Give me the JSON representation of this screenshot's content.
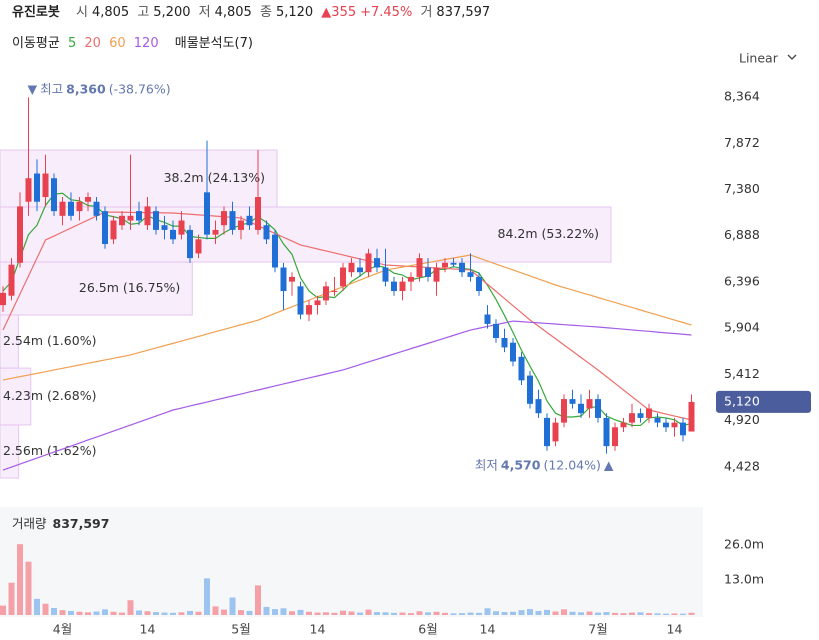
{
  "header": {
    "name": "유진로봇",
    "fields": [
      {
        "label": "시",
        "value": "4,805"
      },
      {
        "label": "고",
        "value": "5,200"
      },
      {
        "label": "저",
        "value": "4,805"
      },
      {
        "label": "종",
        "value": "5,120"
      }
    ],
    "change": "▲355",
    "change_pct": "+7.45%",
    "volume_label": "거",
    "volume_value": "837,597"
  },
  "indicators": {
    "ma_title": "이동평균",
    "profile_title": "매물분석도(7)",
    "scale": "Linear"
  },
  "chart_data": [
    {
      "type": "candlestick",
      "categories": [
        null,
        null,
        null,
        null,
        null,
        null,
        null,
        "4월",
        null,
        null,
        null,
        null,
        null,
        null,
        null,
        null,
        null,
        "14",
        null,
        null,
        null,
        null,
        null,
        null,
        null,
        null,
        null,
        null,
        "5월",
        null,
        null,
        null,
        null,
        null,
        null,
        null,
        null,
        "14",
        null,
        null,
        null,
        null,
        null,
        null,
        null,
        null,
        null,
        null,
        null,
        null,
        "6월",
        null,
        null,
        null,
        null,
        null,
        null,
        "14",
        null,
        null,
        null,
        null,
        null,
        null,
        null,
        null,
        null,
        null,
        null,
        null,
        "7월",
        null,
        null,
        null,
        null,
        null,
        null,
        null,
        null,
        "14",
        null,
        null
      ],
      "open": [
        6150,
        6250,
        6600,
        7250,
        7550,
        7300,
        7500,
        7100,
        7250,
        7150,
        7250,
        7250,
        7150,
        6850,
        7000,
        7050,
        7150,
        7000,
        7150,
        7000,
        6950,
        6900,
        6950,
        6700,
        7350,
        6900,
        7000,
        7150,
        6950,
        7100,
        6950,
        7000,
        6900,
        6550,
        6400,
        6350,
        6050,
        6150,
        6200,
        6300,
        6350,
        6500,
        6550,
        6500,
        6650,
        6550,
        6400,
        6300,
        6400,
        6450,
        6550,
        6400,
        6550,
        6600,
        6600,
        6500,
        6450,
        6050,
        5950,
        5800,
        5750,
        5600,
        5400,
        5150,
        4950,
        4700,
        4900,
        5150,
        5100,
        5050,
        5150,
        4950,
        4650,
        4850,
        4900,
        5000,
        4950,
        4950,
        4900,
        4850,
        4900,
        4805
      ],
      "high": [
        6350,
        6650,
        7350,
        8360,
        7700,
        7750,
        7550,
        7300,
        7350,
        7300,
        7350,
        7300,
        7200,
        7100,
        7150,
        7750,
        7250,
        7300,
        7200,
        7100,
        7050,
        7150,
        7000,
        6900,
        7900,
        7050,
        7200,
        7250,
        7100,
        7200,
        7800,
        7050,
        6950,
        6600,
        6500,
        6400,
        6200,
        6250,
        6400,
        6450,
        6600,
        6650,
        6650,
        6750,
        6750,
        6750,
        6450,
        6450,
        6500,
        6700,
        6650,
        6600,
        6650,
        6650,
        6650,
        6700,
        6500,
        6150,
        6000,
        5900,
        5800,
        5650,
        5450,
        5250,
        5000,
        4950,
        5200,
        5250,
        5200,
        5250,
        5200,
        5000,
        4900,
        4950,
        5100,
        5050,
        5100,
        5000,
        4950,
        4950,
        4950,
        5200
      ],
      "low": [
        6080,
        6200,
        6550,
        7100,
        7150,
        7200,
        7100,
        7000,
        7050,
        7050,
        7150,
        7050,
        6750,
        6800,
        6950,
        6950,
        7000,
        6950,
        6900,
        6850,
        6800,
        6850,
        6600,
        6650,
        6850,
        6800,
        6900,
        6900,
        6850,
        6950,
        6900,
        6800,
        6500,
        6100,
        6250,
        6000,
        5980,
        6050,
        6150,
        6250,
        6300,
        6450,
        6450,
        6450,
        6500,
        6350,
        6250,
        6200,
        6300,
        6400,
        6400,
        6250,
        6500,
        6550,
        6450,
        6400,
        6250,
        5900,
        5750,
        5650,
        5500,
        5300,
        5050,
        4950,
        4600,
        4650,
        4850,
        5050,
        4950,
        4950,
        4900,
        4570,
        4600,
        4800,
        4850,
        4900,
        4900,
        4850,
        4800,
        4750,
        4700,
        4805
      ],
      "close": [
        6280,
        6580,
        7200,
        7500,
        7250,
        7550,
        7150,
        7250,
        7100,
        7250,
        7300,
        7100,
        6800,
        7050,
        7100,
        7100,
        7050,
        7200,
        6950,
        6950,
        6850,
        7050,
        6650,
        6850,
        6900,
        6950,
        7150,
        6950,
        7050,
        7000,
        7300,
        6850,
        6550,
        6300,
        6450,
        6050,
        6150,
        6200,
        6350,
        6300,
        6550,
        6600,
        6500,
        6700,
        6550,
        6400,
        6300,
        6400,
        6450,
        6650,
        6450,
        6550,
        6600,
        6580,
        6500,
        6450,
        6300,
        5950,
        5800,
        5700,
        5550,
        5350,
        5100,
        5000,
        4650,
        4900,
        5150,
        5100,
        5000,
        5150,
        4950,
        4650,
        4850,
        4900,
        5000,
        4950,
        5050,
        4900,
        4850,
        4900,
        4765,
        5120
      ],
      "up_color": "#e8414f",
      "down_color": "#1f6fd6",
      "series": [
        {
          "name": "5",
          "color": "#36a83a",
          "values": [
            6300,
            6400,
            6650,
            6900,
            7000,
            7210,
            7330,
            7340,
            7270,
            7260,
            7210,
            7200,
            7110,
            7090,
            7070,
            7010,
            7020,
            7100,
            7060,
            7030,
            6990,
            6990,
            6880,
            6870,
            6860,
            6860,
            6920,
            6970,
            7000,
            7030,
            7090,
            7030,
            6950,
            6800,
            6690,
            6440,
            6300,
            6230,
            6240,
            6230,
            6310,
            6400,
            6460,
            6530,
            6570,
            6550,
            6490,
            6470,
            6420,
            6440,
            6460,
            6530,
            6530,
            6560,
            6540,
            6530,
            6490,
            6360,
            6210,
            6040,
            5860,
            5670,
            5500,
            5340,
            5130,
            5000,
            4960,
            4960,
            4970,
            5060,
            5070,
            4970,
            4930,
            4900,
            4870,
            4870,
            4950,
            4960,
            4950,
            4930,
            4870,
            4890
          ]
        },
        {
          "name": "20",
          "color": "#ee6d6d",
          "values": [
            5885,
            6077,
            6268,
            6460,
            6651,
            6843,
            6885,
            6928,
            6970,
            7013,
            7055,
            7098,
            7140,
            7139,
            7138,
            7136,
            7135,
            7134,
            7133,
            7131,
            7130,
            7123,
            7117,
            7110,
            7104,
            7097,
            7090,
            7084,
            7077,
            7036,
            6995,
            6954,
            6913,
            6872,
            6831,
            6790,
            6769,
            6747,
            6726,
            6705,
            6684,
            6662,
            6641,
            6620,
            6598,
            6577,
            6572,
            6566,
            6561,
            6556,
            6550,
            6545,
            6540,
            6534,
            6529,
            6524,
            6448,
            6372,
            6296,
            6220,
            6144,
            6068,
            5992,
            5926,
            5859,
            5793,
            5726,
            5660,
            5593,
            5527,
            5460,
            5389,
            5318,
            5247,
            5176,
            5105,
            5034,
            5013,
            4991,
            4970,
            4949,
            4928
          ]
        },
        {
          "name": "60",
          "color": "#f0a050",
          "values": [
            5353,
            5371,
            5389,
            5406,
            5424,
            5442,
            5460,
            5478,
            5495,
            5513,
            5531,
            5549,
            5567,
            5584,
            5602,
            5620,
            5645,
            5669,
            5694,
            5719,
            5743,
            5768,
            5793,
            5817,
            5842,
            5867,
            5891,
            5916,
            5941,
            5965,
            5990,
            6026,
            6061,
            6097,
            6132,
            6168,
            6203,
            6239,
            6274,
            6310,
            6345,
            6381,
            6416,
            6452,
            6487,
            6523,
            6539,
            6555,
            6571,
            6587,
            6603,
            6619,
            6635,
            6651,
            6667,
            6683,
            6651,
            6619,
            6587,
            6555,
            6524,
            6492,
            6460,
            6428,
            6396,
            6364,
            6337,
            6311,
            6284,
            6258,
            6231,
            6204,
            6178,
            6151,
            6125,
            6098,
            6071,
            6045,
            6018,
            5991,
            5965,
            5938
          ]
        },
        {
          "name": "120",
          "color": "#a45be8",
          "values": [
            4395,
            4427,
            4459,
            4491,
            4523,
            4555,
            4587,
            4619,
            4651,
            4683,
            4715,
            4746,
            4778,
            4810,
            4842,
            4874,
            4906,
            4938,
            4970,
            5002,
            5034,
            5055,
            5077,
            5098,
            5119,
            5141,
            5162,
            5183,
            5204,
            5226,
            5247,
            5268,
            5290,
            5311,
            5332,
            5354,
            5375,
            5396,
            5417,
            5439,
            5460,
            5488,
            5517,
            5545,
            5573,
            5602,
            5630,
            5658,
            5687,
            5715,
            5743,
            5772,
            5800,
            5828,
            5857,
            5885,
            5904,
            5923,
            5942,
            5961,
            5980,
            5974,
            5967,
            5961,
            5955,
            5949,
            5942,
            5936,
            5930,
            5923,
            5917,
            5909,
            5902,
            5894,
            5886,
            5878,
            5871,
            5863,
            5855,
            5848,
            5840,
            5832
          ]
        }
      ],
      "volume_profile": {
        "bins": [
          4310,
          4875,
          5480,
          6045,
          6608,
          7194,
          7800
        ],
        "values": [
          1.62,
          2.68,
          1.6,
          16.75,
          53.22,
          24.13
        ],
        "volumes": [
          2560000,
          4230000,
          2540000,
          26500000,
          84200000,
          38200000
        ],
        "value_labels": [
          "2.56m (1.62%)",
          "4.23m (2.68%)",
          "2.54m (1.60%)",
          "26.5m (16.75%)",
          "84.2m (53.22%)",
          "38.2m (24.13%)"
        ],
        "color": "#f3def8"
      },
      "high_marker": {
        "marker": "▼",
        "text": "최고",
        "value": 8360,
        "value_label": "8,360",
        "change": "(-38.76%)"
      },
      "low_marker": {
        "marker": "▲",
        "text": "최저",
        "value": 4570,
        "value_label": "4,570",
        "change": "(12.04%)"
      },
      "last_price": {
        "value": 5120,
        "label": "5,120"
      },
      "ylim": [
        4183,
        8545
      ],
      "yticks": [
        {
          "value": 8364,
          "label": "8,364"
        },
        {
          "value": 7872,
          "label": "7,872"
        },
        {
          "value": 7380,
          "label": "7,380"
        },
        {
          "value": 6888,
          "label": "6,888"
        },
        {
          "value": 6396,
          "label": "6,396"
        },
        {
          "value": 5904,
          "label": "5,904"
        },
        {
          "value": 5412,
          "label": "5,412"
        },
        {
          "value": 4920,
          "label": "4,920"
        },
        {
          "value": 4428,
          "label": "4,428"
        }
      ],
      "grid": false
    },
    {
      "type": "bar",
      "title": "거래량",
      "last_label": "837,597",
      "values": [
        3500000,
        12000000,
        26300000,
        19800000,
        6000000,
        4200000,
        2600000,
        1800000,
        1500000,
        1200000,
        1000000,
        1300000,
        2100000,
        1200000,
        900000,
        5500000,
        1700000,
        1400000,
        1100000,
        900000,
        800000,
        1000000,
        1500000,
        1200000,
        13600000,
        3200000,
        2000000,
        6500000,
        1800000,
        1500000,
        11000000,
        3000000,
        2200000,
        2500000,
        1400000,
        1900000,
        1200000,
        900000,
        1000000,
        800000,
        1600000,
        1300000,
        900000,
        2000000,
        1100000,
        1000000,
        800000,
        900000,
        700000,
        1400000,
        1000000,
        1200000,
        800000,
        600000,
        700000,
        900000,
        800000,
        2500000,
        1400000,
        1100000,
        1200000,
        1800000,
        2200000,
        1500000,
        1900000,
        1300000,
        2100000,
        1200000,
        1000000,
        1300000,
        900000,
        1100000,
        800000,
        700000,
        900000,
        1000000,
        700000,
        600000,
        500000,
        600000,
        500000,
        837597
      ],
      "up_color": "#f4a0a6",
      "down_color": "#9cc4ef",
      "ylim": [
        0,
        40100000
      ],
      "yticks": [
        {
          "value": 26000000,
          "label": "26.0m"
        },
        {
          "value": 13000000,
          "label": "13.0m"
        }
      ],
      "grid": false
    }
  ]
}
